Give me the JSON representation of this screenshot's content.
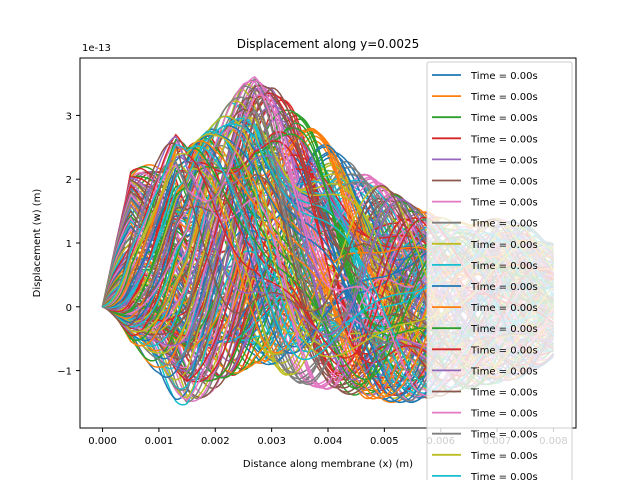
{
  "chart_data": {
    "type": "line",
    "title": "Displacement along y=0.0025",
    "xlabel": "Distance along membrane (x) (m)",
    "ylabel": "Displacement (w) (m)",
    "y_offset_text": "1e-13",
    "xlim": [
      -0.0004,
      0.0084
    ],
    "ylim": [
      -1.9,
      3.9
    ],
    "y_scale_note": "values in units of 1e-13 m",
    "x_ticks": [
      "0.000",
      "0.001",
      "0.002",
      "0.003",
      "0.004",
      "0.005",
      "0.006",
      "0.007",
      "0.008"
    ],
    "y_ticks": [
      "−1",
      "0",
      "1",
      "2",
      "3"
    ],
    "grid": false,
    "legend_placement": "top-right",
    "colors": [
      "#1f77b4",
      "#ff7f0e",
      "#2ca02c",
      "#d62728",
      "#9467bd",
      "#8c564b",
      "#e377c2",
      "#7f7f7f",
      "#bcbd22",
      "#17becf"
    ],
    "series_count_estimate": 200,
    "series_label": "Time = 0.00s",
    "legend_entries": [
      "Time = 0.00s",
      "Time = 0.00s",
      "Time = 0.00s",
      "Time = 0.00s",
      "Time = 0.00s",
      "Time = 0.00s",
      "Time = 0.00s",
      "Time = 0.00s",
      "Time = 0.00s",
      "Time = 0.00s",
      "Time = 0.00s",
      "Time = 0.00s",
      "Time = 0.00s",
      "Time = 0.00s",
      "Time = 0.00s",
      "Time = 0.00s",
      "Time = 0.00s",
      "Time = 0.00s",
      "Time = 0.00s",
      "Time = 0.00s"
    ],
    "envelope": {
      "x": [
        0.0,
        0.0005,
        0.001,
        0.0013,
        0.0015,
        0.002,
        0.0025,
        0.0027,
        0.003,
        0.0035,
        0.004,
        0.0045,
        0.005,
        0.0055,
        0.006,
        0.0065,
        0.007,
        0.0075,
        0.008
      ],
      "upper": [
        0.0,
        2.2,
        2.4,
        2.7,
        2.5,
        2.9,
        3.5,
        3.65,
        3.5,
        3.0,
        2.6,
        2.2,
        1.9,
        1.6,
        1.4,
        1.3,
        1.4,
        1.3,
        1.0
      ],
      "lower": [
        0.0,
        -1.0,
        -1.2,
        -1.5,
        -1.6,
        -1.3,
        -1.0,
        -0.9,
        -1.0,
        -1.2,
        -1.3,
        -1.4,
        -1.5,
        -1.5,
        -1.4,
        -1.3,
        -1.2,
        -1.1,
        -0.8
      ]
    }
  }
}
